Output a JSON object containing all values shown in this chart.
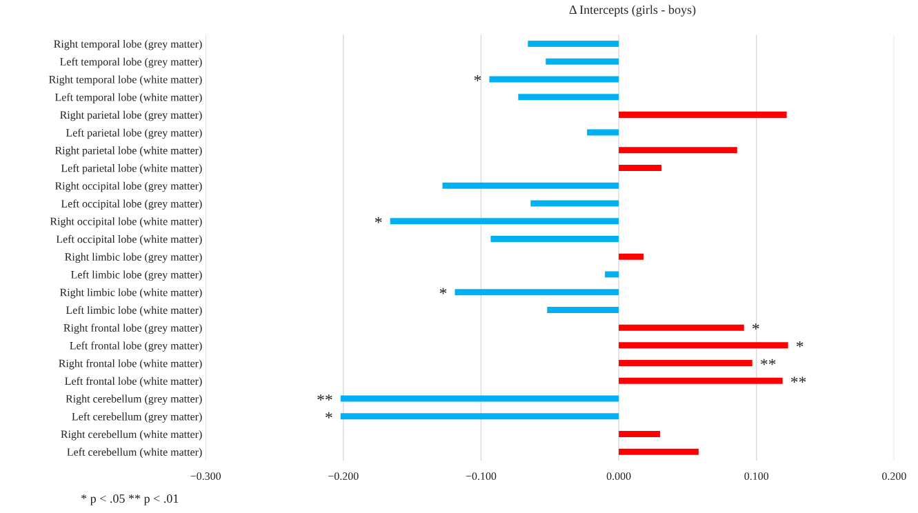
{
  "chart_data": {
    "type": "bar",
    "orientation": "horizontal",
    "title": "Δ Intercepts (girls - boys)",
    "categories": [
      "Right temporal lobe (grey matter)",
      "Left temporal lobe (grey matter)",
      "Right temporal lobe (white matter)",
      "Left temporal lobe (white matter)",
      "Right parietal lobe (grey matter)",
      "Left parietal lobe (grey matter)",
      "Right parietal lobe (white matter)",
      "Left parietal lobe (white matter)",
      "Right occipital lobe (grey matter)",
      "Left occipital lobe (grey matter)",
      "Right occipital lobe (white matter)",
      "Left occipital lobe (white matter)",
      "Right limbic lobe (grey matter)",
      "Left limbic lobe (grey matter)",
      "Right limbic lobe (white matter)",
      "Left limbic lobe (white matter)",
      "Right frontal lobe (grey matter)",
      "Left frontal lobe (grey matter)",
      "Right frontal lobe (white matter)",
      "Left frontal lobe (white matter)",
      "Right cerebellum (grey matter)",
      "Left cerebellum (grey matter)",
      "Right cerebellum (white matter)",
      "Left cerebellum (white matter)"
    ],
    "values": [
      -0.066,
      -0.053,
      -0.094,
      -0.073,
      0.122,
      -0.023,
      0.086,
      0.031,
      -0.128,
      -0.064,
      -0.166,
      -0.093,
      0.018,
      -0.01,
      -0.119,
      -0.052,
      0.091,
      0.123,
      0.097,
      0.119,
      -0.202,
      -0.202,
      0.03,
      0.058
    ],
    "colors": [
      "#00b0f0",
      "#00b0f0",
      "#00b0f0",
      "#00b0f0",
      "#ff0000",
      "#00b0f0",
      "#ff0000",
      "#ff0000",
      "#00b0f0",
      "#00b0f0",
      "#00b0f0",
      "#00b0f0",
      "#ff0000",
      "#00b0f0",
      "#00b0f0",
      "#00b0f0",
      "#ff0000",
      "#ff0000",
      "#ff0000",
      "#ff0000",
      "#00b0f0",
      "#00b0f0",
      "#ff0000",
      "#ff0000"
    ],
    "xlim": [
      -0.3,
      0.2
    ],
    "xticks": [
      {
        "value": -0.3,
        "label": "−0.300"
      },
      {
        "value": -0.2,
        "label": "−0.200"
      },
      {
        "value": -0.1,
        "label": "−0.100"
      },
      {
        "value": 0,
        "label": "0.000"
      },
      {
        "value": 0.1,
        "label": "0.100"
      },
      {
        "value": 0.2,
        "label": "0.200"
      }
    ],
    "grid": "x",
    "annotations": [
      {
        "text": "*",
        "x": -0.094,
        "y": "Right temporal lobe (white matter)"
      },
      {
        "text": "*",
        "x": -0.166,
        "y": "Right occipital lobe (white matter)"
      },
      {
        "text": "*",
        "x": -0.119,
        "y": "Right limbic lobe (white matter)"
      },
      {
        "text": "*",
        "x": 0.091,
        "y": "Right frontal lobe (grey matter)"
      },
      {
        "text": "*",
        "x": 0.123,
        "y": "Left frontal lobe (grey matter)"
      },
      {
        "text": "**",
        "x": 0.097,
        "y": "Right frontal lobe (white matter)"
      },
      {
        "text": "**",
        "x": 0.119,
        "y": "Left frontal lobe (white matter)"
      },
      {
        "text": "**",
        "x": -0.202,
        "y": "Right cerebellum (grey matter)"
      },
      {
        "text": "*",
        "x": -0.202,
        "y": "Left cerebellum (grey matter)"
      },
      "* p < .05 ** p < .01"
    ]
  }
}
